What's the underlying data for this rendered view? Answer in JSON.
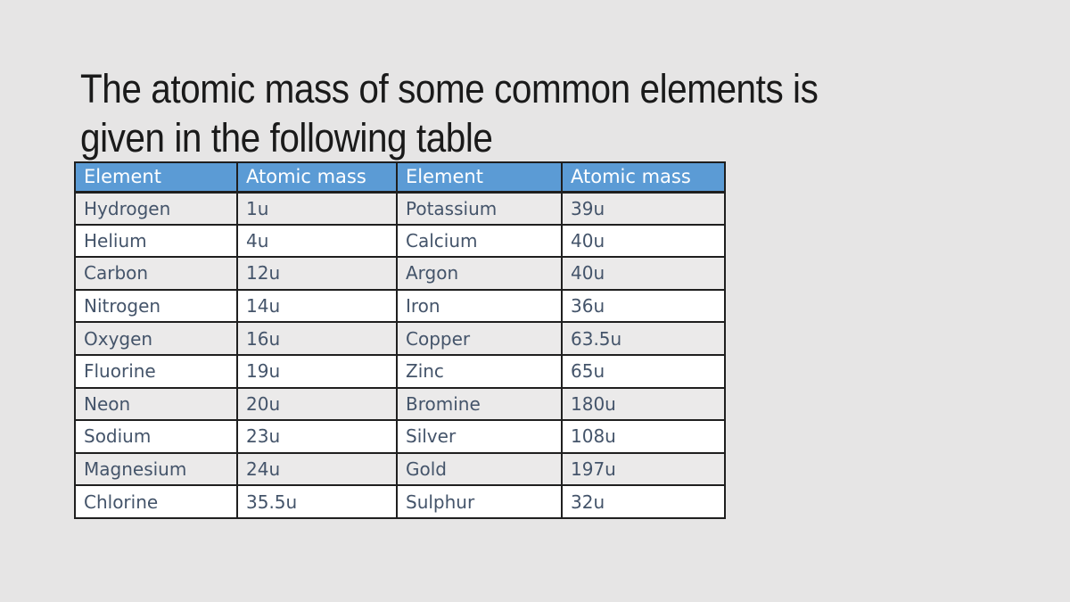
{
  "slide": {
    "title_line1": "The atomic mass of some common elements is",
    "title_line2": "given in the following table"
  },
  "colors": {
    "background": "#E6E5E5",
    "title_text": "#1A1A1A",
    "header_bg": "#5B9BD5",
    "header_text": "#FFFFFF",
    "body_text": "#44546A",
    "stripe": "#EBEAEA",
    "row_white": "#FFFFFF",
    "border": "#1F1F1F"
  },
  "table": {
    "columns": [
      "Element",
      "Atomic mass",
      "Element",
      "Atomic mass"
    ],
    "rows": [
      [
        "Hydrogen",
        "1u",
        "Potassium",
        "39u"
      ],
      [
        "Helium",
        "4u",
        "Calcium",
        "40u"
      ],
      [
        "Carbon",
        "12u",
        "Argon",
        "40u"
      ],
      [
        "Nitrogen",
        "14u",
        "Iron",
        "36u"
      ],
      [
        "Oxygen",
        "16u",
        "Copper",
        "63.5u"
      ],
      [
        "Fluorine",
        "19u",
        "Zinc",
        "65u"
      ],
      [
        "Neon",
        "20u",
        "Bromine",
        "180u"
      ],
      [
        "Sodium",
        "23u",
        "Silver",
        "108u"
      ],
      [
        "Magnesium",
        "24u",
        "Gold",
        "197u"
      ],
      [
        "Chlorine",
        "35.5u",
        "Sulphur",
        "32u"
      ]
    ]
  }
}
